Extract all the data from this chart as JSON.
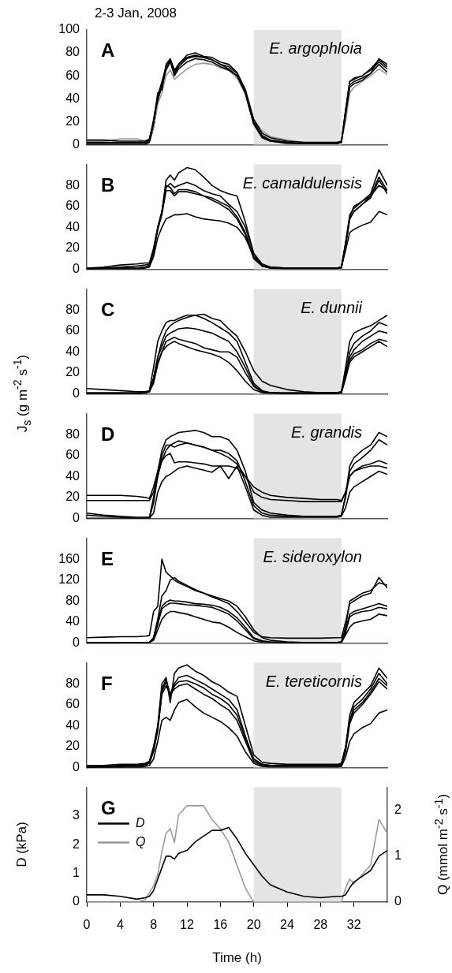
{
  "chart_data": [
    {
      "type": "line",
      "title": "2-3 Jan, 2008",
      "annotations": [
        "A",
        "E. argophloia"
      ],
      "x": [
        0,
        2,
        4,
        6,
        7,
        7.5,
        8,
        8.5,
        9,
        9.5,
        10,
        10.5,
        11,
        12,
        13,
        14,
        15,
        16,
        17,
        18,
        19,
        20,
        21,
        22,
        24,
        26,
        28,
        30,
        30.5,
        31,
        31.5,
        32,
        33,
        34,
        35,
        36
      ],
      "xlim": [
        0,
        36
      ],
      "ylim": [
        0,
        100
      ],
      "yticks": [
        0,
        20,
        40,
        60,
        80,
        100
      ],
      "tick_labels": "y",
      "marker": "none",
      "bands": [
        {
          "axis": "x",
          "from": 20,
          "to": 30.5
        }
      ],
      "series": [
        {
          "color": "#000000",
          "values": [
            4,
            4,
            3,
            3,
            3,
            5,
            20,
            45,
            48,
            70,
            75,
            65,
            70,
            78,
            80,
            77,
            76,
            72,
            70,
            63,
            48,
            22,
            10,
            6,
            3,
            2,
            2,
            2,
            3,
            25,
            52,
            55,
            58,
            62,
            75,
            70
          ]
        },
        {
          "color": "#000000",
          "values": [
            1,
            1,
            1,
            1,
            1,
            3,
            18,
            40,
            50,
            65,
            72,
            62,
            68,
            75,
            77,
            76,
            74,
            70,
            68,
            62,
            47,
            20,
            8,
            4,
            2,
            1,
            1,
            1,
            2,
            30,
            55,
            57,
            60,
            65,
            72,
            66
          ]
        },
        {
          "color": "#000000",
          "values": [
            2,
            2,
            2,
            2,
            2,
            4,
            22,
            42,
            55,
            68,
            73,
            60,
            66,
            72,
            75,
            74,
            72,
            68,
            65,
            60,
            45,
            18,
            6,
            3,
            2,
            1,
            1,
            1,
            2,
            28,
            50,
            53,
            56,
            62,
            70,
            63
          ]
        },
        {
          "color": "#999999",
          "values": [
            3,
            3,
            5,
            5,
            3,
            5,
            15,
            35,
            45,
            60,
            65,
            57,
            60,
            66,
            70,
            71,
            70,
            67,
            65,
            58,
            44,
            22,
            12,
            7,
            4,
            2,
            2,
            2,
            3,
            20,
            45,
            50,
            55,
            60,
            66,
            61
          ]
        },
        {
          "color": "#000000",
          "values": [
            0,
            0,
            0,
            0,
            0,
            2,
            15,
            38,
            52,
            68,
            74,
            63,
            70,
            76,
            78,
            76,
            74,
            70,
            66,
            60,
            44,
            18,
            7,
            3,
            1,
            1,
            1,
            1,
            2,
            30,
            55,
            58,
            60,
            66,
            74,
            68
          ]
        }
      ]
    },
    {
      "type": "line",
      "annotations": [
        "B",
        "E. camaldulensis"
      ],
      "x": [
        0,
        2,
        4,
        6,
        7,
        7.5,
        8,
        8.5,
        9,
        9.5,
        10,
        10.5,
        11,
        12,
        13,
        14,
        15,
        16,
        17,
        18,
        19,
        20,
        21,
        22,
        24,
        26,
        28,
        30,
        30.5,
        31,
        31.5,
        32,
        33,
        34,
        35,
        36
      ],
      "xlim": [
        0,
        36
      ],
      "ylim": [
        0,
        100
      ],
      "yticks": [
        0,
        20,
        40,
        60,
        80
      ],
      "tick_labels": "y",
      "marker": "none",
      "bands": [
        {
          "axis": "x",
          "from": 20,
          "to": 30.5
        }
      ],
      "series": [
        {
          "color": "#000000",
          "values": [
            1,
            2,
            4,
            5,
            6,
            6,
            20,
            40,
            55,
            85,
            90,
            85,
            92,
            97,
            95,
            88,
            80,
            75,
            72,
            70,
            45,
            15,
            3,
            1,
            1,
            1,
            1,
            1,
            2,
            25,
            50,
            60,
            65,
            72,
            95,
            80
          ]
        },
        {
          "color": "#000000",
          "values": [
            1,
            1,
            2,
            3,
            4,
            5,
            18,
            38,
            55,
            78,
            82,
            78,
            80,
            83,
            80,
            75,
            72,
            70,
            62,
            55,
            40,
            15,
            5,
            2,
            1,
            1,
            1,
            1,
            2,
            22,
            48,
            55,
            62,
            70,
            88,
            75
          ]
        },
        {
          "color": "#000000",
          "values": [
            1,
            1,
            1,
            1,
            2,
            4,
            18,
            40,
            55,
            80,
            78,
            72,
            76,
            76,
            74,
            70,
            68,
            64,
            60,
            50,
            35,
            12,
            3,
            1,
            1,
            1,
            1,
            1,
            2,
            25,
            52,
            58,
            65,
            70,
            80,
            75
          ]
        },
        {
          "color": "#000000",
          "values": [
            0,
            1,
            1,
            1,
            2,
            3,
            16,
            38,
            52,
            75,
            75,
            70,
            74,
            74,
            72,
            70,
            66,
            62,
            57,
            48,
            33,
            10,
            3,
            1,
            0,
            0,
            0,
            0,
            1,
            22,
            48,
            55,
            62,
            68,
            85,
            72
          ]
        },
        {
          "color": "#000000",
          "values": [
            0,
            0,
            0,
            0,
            1,
            2,
            12,
            30,
            40,
            48,
            50,
            52,
            52,
            53,
            50,
            48,
            47,
            46,
            44,
            40,
            30,
            12,
            4,
            2,
            1,
            1,
            1,
            1,
            2,
            18,
            35,
            38,
            42,
            45,
            55,
            52
          ]
        }
      ]
    },
    {
      "type": "line",
      "annotations": [
        "C",
        "E. dunnii"
      ],
      "ylabel": "J$_{s}$ (g m$^{-2}$ s$^{-1}$)",
      "x": [
        0,
        2,
        4,
        6,
        7,
        7.5,
        8,
        8.5,
        9,
        9.5,
        10,
        10.5,
        11,
        12,
        13,
        14,
        15,
        16,
        17,
        18,
        19,
        20,
        21,
        22,
        24,
        26,
        28,
        30,
        30.5,
        31,
        31.5,
        32,
        33,
        34,
        35,
        36
      ],
      "xlim": [
        0,
        36
      ],
      "ylim": [
        0,
        100
      ],
      "yticks": [
        0,
        20,
        40,
        60,
        80
      ],
      "tick_labels": "y",
      "marker": "none",
      "bands": [
        {
          "axis": "x",
          "from": 20,
          "to": 30.5
        }
      ],
      "series": [
        {
          "color": "#000000",
          "values": [
            5,
            4,
            3,
            2,
            2,
            3,
            25,
            50,
            60,
            68,
            70,
            70,
            72,
            75,
            75,
            76,
            72,
            70,
            62,
            55,
            40,
            22,
            12,
            8,
            4,
            2,
            1,
            1,
            2,
            25,
            50,
            58,
            62,
            65,
            70,
            75
          ]
        },
        {
          "color": "#000000",
          "values": [
            1,
            1,
            1,
            1,
            1,
            2,
            15,
            35,
            50,
            60,
            65,
            68,
            70,
            73,
            75,
            72,
            68,
            63,
            58,
            50,
            30,
            10,
            3,
            1,
            1,
            1,
            1,
            1,
            2,
            20,
            40,
            48,
            55,
            60,
            68,
            65
          ]
        },
        {
          "color": "#000000",
          "values": [
            0,
            0,
            0,
            0,
            1,
            2,
            15,
            35,
            45,
            55,
            58,
            60,
            62,
            63,
            62,
            60,
            58,
            54,
            50,
            40,
            25,
            8,
            2,
            1,
            0,
            0,
            0,
            0,
            1,
            18,
            35,
            42,
            50,
            55,
            60,
            58
          ]
        },
        {
          "color": "#000000",
          "values": [
            0,
            0,
            0,
            0,
            1,
            2,
            12,
            30,
            40,
            50,
            52,
            54,
            52,
            50,
            48,
            44,
            42,
            40,
            40,
            35,
            20,
            7,
            2,
            1,
            0,
            0,
            0,
            0,
            1,
            15,
            32,
            38,
            42,
            48,
            52,
            50
          ]
        },
        {
          "color": "#000000",
          "values": [
            0,
            0,
            0,
            0,
            1,
            2,
            10,
            28,
            40,
            45,
            48,
            50,
            48,
            45,
            42,
            40,
            38,
            35,
            30,
            22,
            12,
            4,
            1,
            0,
            0,
            0,
            0,
            0,
            1,
            15,
            30,
            35,
            40,
            45,
            50,
            45
          ]
        }
      ]
    },
    {
      "type": "line",
      "annotations": [
        "D",
        "E. grandis"
      ],
      "x": [
        0,
        2,
        4,
        6,
        7,
        7.5,
        8,
        8.5,
        9,
        9.5,
        10,
        10.5,
        11,
        12,
        13,
        14,
        15,
        16,
        17,
        18,
        19,
        20,
        21,
        22,
        24,
        26,
        28,
        30,
        30.5,
        31,
        31.5,
        32,
        33,
        34,
        35,
        36
      ],
      "xlim": [
        0,
        36
      ],
      "ylim": [
        0,
        100
      ],
      "yticks": [
        0,
        20,
        40,
        60,
        80
      ],
      "tick_labels": "y",
      "marker": "none",
      "bands": [
        {
          "axis": "x",
          "from": 20,
          "to": 30.5
        }
      ],
      "series": [
        {
          "color": "#000000",
          "values": [
            22,
            22,
            22,
            21,
            20,
            19,
            30,
            45,
            55,
            60,
            62,
            53,
            54,
            54,
            53,
            52,
            50,
            50,
            50,
            48,
            40,
            30,
            25,
            22,
            20,
            19,
            18,
            18,
            17,
            25,
            40,
            45,
            50,
            52,
            55,
            52
          ]
        },
        {
          "color": "#000000",
          "values": [
            17,
            17,
            17,
            17,
            17,
            17,
            25,
            40,
            55,
            65,
            70,
            68,
            70,
            72,
            70,
            68,
            65,
            62,
            58,
            52,
            40,
            25,
            20,
            18,
            17,
            16,
            16,
            16,
            16,
            25,
            40,
            45,
            48,
            50,
            50,
            48
          ]
        },
        {
          "color": "#000000",
          "values": [
            5,
            3,
            2,
            1,
            1,
            1,
            20,
            45,
            65,
            75,
            78,
            80,
            82,
            83,
            84,
            82,
            78,
            78,
            75,
            65,
            45,
            15,
            8,
            5,
            3,
            2,
            2,
            2,
            3,
            22,
            50,
            58,
            65,
            70,
            82,
            78
          ]
        },
        {
          "color": "#000000",
          "values": [
            3,
            2,
            1,
            0,
            0,
            0,
            15,
            40,
            60,
            70,
            70,
            72,
            74,
            72,
            70,
            68,
            65,
            65,
            62,
            55,
            35,
            12,
            5,
            3,
            2,
            2,
            2,
            2,
            3,
            20,
            45,
            52,
            58,
            65,
            75,
            70
          ]
        },
        {
          "color": "#000000",
          "values": [
            0,
            0,
            0,
            0,
            0,
            0,
            5,
            25,
            35,
            40,
            42,
            45,
            48,
            50,
            48,
            46,
            44,
            50,
            38,
            50,
            30,
            8,
            3,
            1,
            1,
            1,
            1,
            1,
            2,
            10,
            25,
            30,
            35,
            40,
            45,
            42
          ]
        }
      ]
    },
    {
      "type": "line",
      "annotations": [
        "E",
        "E. sideroxylon"
      ],
      "x": [
        0,
        2,
        4,
        6,
        7,
        7.5,
        8,
        8.5,
        9,
        9.5,
        10,
        10.5,
        11,
        12,
        13,
        14,
        15,
        16,
        17,
        18,
        19,
        20,
        21,
        22,
        24,
        26,
        28,
        30,
        30.5,
        31,
        31.5,
        32,
        33,
        34,
        35,
        36
      ],
      "xlim": [
        0,
        36
      ],
      "ylim": [
        0,
        200
      ],
      "yticks": [
        0,
        40,
        80,
        120,
        160
      ],
      "tick_labels": "y",
      "marker": "none",
      "bands": [
        {
          "axis": "x",
          "from": 20,
          "to": 30.5
        }
      ],
      "series": [
        {
          "color": "#000000",
          "values": [
            10,
            11,
            12,
            12,
            13,
            14,
            60,
            70,
            160,
            135,
            128,
            120,
            115,
            108,
            100,
            95,
            88,
            82,
            75,
            60,
            40,
            20,
            12,
            10,
            9,
            9,
            9,
            10,
            10,
            40,
            75,
            80,
            90,
            95,
            125,
            105
          ]
        },
        {
          "color": "#000000",
          "values": [
            0,
            0,
            0,
            0,
            0,
            1,
            10,
            45,
            90,
            100,
            120,
            125,
            118,
            110,
            102,
            95,
            90,
            85,
            80,
            70,
            50,
            25,
            10,
            5,
            2,
            1,
            1,
            1,
            2,
            30,
            80,
            85,
            95,
            100,
            115,
            110
          ]
        },
        {
          "color": "#000000",
          "values": [
            0,
            0,
            0,
            0,
            0,
            1,
            10,
            40,
            70,
            78,
            82,
            80,
            80,
            78,
            75,
            74,
            72,
            68,
            60,
            48,
            30,
            10,
            4,
            2,
            1,
            1,
            1,
            1,
            2,
            25,
            55,
            60,
            65,
            70,
            75,
            70
          ]
        },
        {
          "color": "#000000",
          "values": [
            0,
            0,
            0,
            0,
            0,
            1,
            8,
            35,
            65,
            72,
            76,
            76,
            75,
            73,
            72,
            70,
            68,
            62,
            55,
            42,
            25,
            8,
            3,
            1,
            0,
            0,
            0,
            0,
            1,
            20,
            50,
            55,
            60,
            62,
            68,
            65
          ]
        },
        {
          "color": "#000000",
          "values": [
            0,
            0,
            0,
            0,
            0,
            1,
            5,
            25,
            45,
            55,
            60,
            60,
            58,
            55,
            50,
            45,
            40,
            38,
            30,
            20,
            12,
            4,
            1,
            0,
            0,
            0,
            0,
            0,
            1,
            15,
            30,
            38,
            42,
            45,
            55,
            52
          ]
        }
      ]
    },
    {
      "type": "line",
      "annotations": [
        "F",
        "E. tereticornis"
      ],
      "x": [
        0,
        2,
        4,
        6,
        7,
        7.5,
        8,
        8.5,
        9,
        9.5,
        10,
        10.5,
        11,
        12,
        13,
        14,
        15,
        16,
        17,
        18,
        19,
        20,
        21,
        22,
        24,
        26,
        28,
        30,
        30.5,
        31,
        31.5,
        32,
        33,
        34,
        35,
        36
      ],
      "xlim": [
        0,
        36
      ],
      "ylim": [
        0,
        100
      ],
      "yticks": [
        0,
        20,
        40,
        60,
        80
      ],
      "tick_labels": "y",
      "marker": "none",
      "bands": [
        {
          "axis": "x",
          "from": 20,
          "to": 30.5
        }
      ],
      "series": [
        {
          "color": "#000000",
          "values": [
            2,
            2,
            3,
            3,
            4,
            6,
            20,
            40,
            80,
            86,
            62,
            90,
            95,
            98,
            92,
            88,
            82,
            78,
            72,
            68,
            40,
            12,
            5,
            4,
            3,
            3,
            3,
            3,
            4,
            20,
            50,
            62,
            70,
            78,
            95,
            85
          ]
        },
        {
          "color": "#000000",
          "values": [
            1,
            1,
            2,
            2,
            3,
            5,
            18,
            38,
            75,
            84,
            70,
            80,
            86,
            88,
            84,
            80,
            75,
            70,
            65,
            55,
            30,
            8,
            3,
            2,
            2,
            2,
            2,
            2,
            3,
            18,
            45,
            58,
            65,
            75,
            90,
            80
          ]
        },
        {
          "color": "#000000",
          "values": [
            0,
            1,
            1,
            2,
            3,
            5,
            18,
            38,
            72,
            82,
            68,
            78,
            82,
            83,
            80,
            76,
            70,
            66,
            60,
            50,
            28,
            8,
            3,
            2,
            2,
            2,
            2,
            2,
            3,
            18,
            45,
            55,
            62,
            72,
            85,
            78
          ]
        },
        {
          "color": "#000000",
          "values": [
            0,
            0,
            1,
            1,
            2,
            4,
            15,
            35,
            70,
            78,
            70,
            75,
            78,
            80,
            75,
            70,
            66,
            60,
            55,
            45,
            25,
            6,
            2,
            1,
            1,
            1,
            1,
            1,
            2,
            15,
            42,
            52,
            60,
            70,
            82,
            75
          ]
        },
        {
          "color": "#000000",
          "values": [
            0,
            0,
            0,
            0,
            1,
            2,
            8,
            25,
            45,
            48,
            45,
            55,
            62,
            65,
            58,
            52,
            48,
            44,
            38,
            30,
            15,
            4,
            1,
            0,
            0,
            0,
            0,
            0,
            1,
            10,
            25,
            32,
            38,
            42,
            52,
            55
          ]
        }
      ]
    },
    {
      "type": "line",
      "annotations": [
        "G"
      ],
      "xlabel": "Time (h)",
      "ylabel": "D (kPa)",
      "y2label": "Q (mmol m$^{-2}$ s$^{-1}$)",
      "x": [
        0,
        2,
        4,
        6,
        7,
        7.5,
        8,
        8.5,
        9,
        9.5,
        10,
        10.5,
        11,
        12,
        13,
        14,
        15,
        16,
        17,
        18,
        19,
        20,
        21,
        22,
        24,
        26,
        28,
        30,
        30.5,
        31,
        31.5,
        32,
        33,
        34,
        35,
        36
      ],
      "xlim": [
        0,
        36
      ],
      "xticks": [
        0,
        4,
        8,
        12,
        16,
        20,
        24,
        28,
        32
      ],
      "ylim": [
        0,
        4
      ],
      "yticks": [
        0,
        1,
        2,
        3
      ],
      "y2lim": [
        0,
        2.5
      ],
      "y2ticks": [
        0,
        1,
        2
      ],
      "marker": "none",
      "legend": "top left",
      "bands": [
        {
          "axis": "x",
          "from": 20,
          "to": 30.5
        }
      ],
      "series": [
        {
          "name": "D",
          "color": "#000000",
          "values": [
            0.25,
            0.25,
            0.2,
            0.1,
            0.15,
            0.2,
            0.4,
            0.8,
            1.2,
            1.6,
            1.6,
            1.5,
            1.7,
            1.8,
            2.1,
            2.3,
            2.5,
            2.5,
            2.6,
            2.2,
            1.7,
            1.3,
            0.9,
            0.6,
            0.35,
            0.2,
            0.15,
            0.2,
            0.2,
            0.25,
            0.5,
            0.7,
            0.9,
            1.1,
            1.6,
            1.8
          ]
        },
        {
          "name": "Q",
          "color": "#999999",
          "axis": "y2",
          "values": [
            0,
            0,
            0,
            0,
            0.05,
            0.2,
            0.35,
            0.6,
            1.1,
            1.5,
            1.6,
            1.3,
            1.9,
            2.1,
            2.1,
            2.1,
            1.8,
            1.6,
            1.3,
            0.8,
            0.3,
            0,
            0,
            0,
            0,
            0,
            0,
            0,
            0,
            0.3,
            0.5,
            0.4,
            0.6,
            0.8,
            1.8,
            1.5
          ]
        }
      ]
    }
  ]
}
